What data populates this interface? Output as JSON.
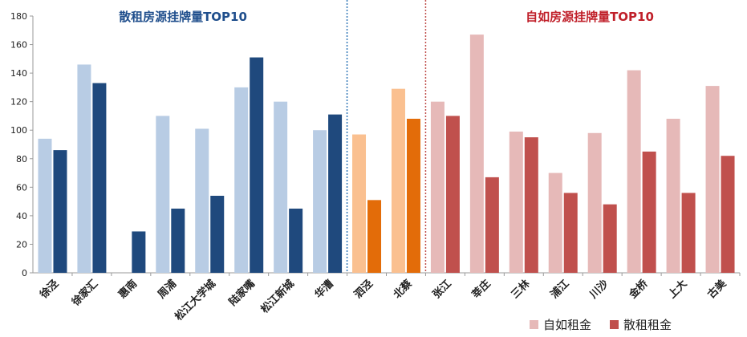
{
  "chart_data": {
    "type": "bar",
    "ylim": [
      0,
      180
    ],
    "yticks": [
      0,
      20,
      40,
      60,
      80,
      100,
      120,
      140,
      160,
      180
    ],
    "categories": [
      "徐泾",
      "徐家汇",
      "惠南",
      "周浦",
      "松江大学城",
      "陆家嘴",
      "松江新城",
      "华漕",
      "泗泾",
      "北蔡",
      "张江",
      "莘庄",
      "三林",
      "浦江",
      "川沙",
      "金桥",
      "上大",
      "古美"
    ],
    "series": [
      {
        "name": "自如租金",
        "values": [
          94,
          146,
          null,
          110,
          101,
          130,
          120,
          100,
          97,
          129,
          120,
          167,
          99,
          70,
          98,
          142,
          108,
          131
        ]
      },
      {
        "name": "散租租金",
        "values": [
          86,
          133,
          29,
          45,
          54,
          151,
          45,
          111,
          51,
          108,
          110,
          67,
          95,
          56,
          48,
          85,
          56,
          82
        ]
      }
    ],
    "groups": [
      {
        "title": "散租房源挂牌量TOP10",
        "title_color": "#1f4e8c",
        "light": "#b8cce4",
        "dark": "#1f497d",
        "start": 0,
        "count": 8
      },
      {
        "title": "",
        "title_color": "#e46c0a",
        "light": "#fac090",
        "dark": "#e36c09",
        "start": 8,
        "count": 2
      },
      {
        "title": "自如房源挂牌量TOP10",
        "title_color": "#c0202a",
        "light": "#e6b9b8",
        "dark": "#c0504d",
        "start": 10,
        "count": 8
      }
    ],
    "divider_colors": [
      "#2e75b6",
      "#c0504d"
    ],
    "legend": [
      {
        "label": "自如租金",
        "color": "#e6b9b8"
      },
      {
        "label": "散租租金",
        "color": "#c0504d"
      }
    ]
  }
}
